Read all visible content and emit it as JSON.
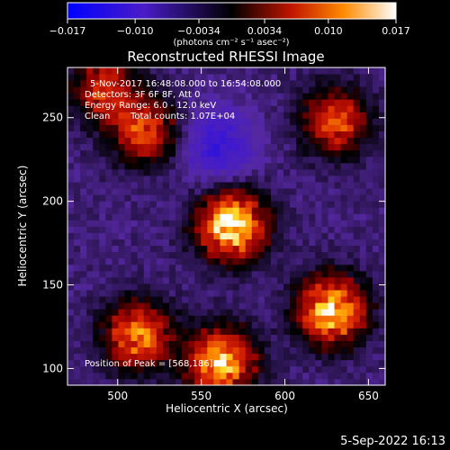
{
  "chart_data": {
    "type": "heatmap",
    "title": "Reconstructed RHESSI Image",
    "xlabel": "Heliocentric X (arcsec)",
    "ylabel": "Heliocentric Y (arcsec)",
    "x_range": [
      470,
      660
    ],
    "y_range": [
      90,
      280
    ],
    "x_ticks": [
      500,
      550,
      600,
      650
    ],
    "y_ticks": [
      100,
      150,
      200,
      250
    ],
    "annotations": {
      "time_range": "5-Nov-2017 16:48:08.000 to 16:54:08.000",
      "detectors": "Detectors: 3F 6F 8F, Att 0",
      "energy_range": "Energy Range: 6.0 - 12.0 keV",
      "method": "Clean",
      "total_counts": "Total counts: 1.07E+04",
      "peak": "Position of Peak = [568,186]"
    },
    "colorbar": {
      "range": [
        -0.017,
        0.017
      ],
      "tick_labels": [
        "−0.017",
        "−0.010",
        "−0.0034",
        "0.0034",
        "0.010",
        "0.017"
      ],
      "tick_values": [
        -0.017,
        -0.01,
        -0.0034,
        0.0034,
        0.01,
        0.017
      ],
      "unit_label": "(photons cm⁻² s⁻¹ asec⁻²)"
    },
    "sources": [
      {
        "x": 568,
        "y": 186,
        "peak": 0.017
      },
      {
        "x": 628,
        "y": 135,
        "peak": 0.015
      },
      {
        "x": 562,
        "y": 104,
        "peak": 0.014
      },
      {
        "x": 512,
        "y": 120,
        "peak": 0.011
      },
      {
        "x": 516,
        "y": 242,
        "peak": 0.0085
      },
      {
        "x": 630,
        "y": 248,
        "peak": 0.0085
      },
      {
        "x": 492,
        "y": 268,
        "peak": 0.007
      }
    ],
    "minimum": {
      "x": 560,
      "y": 233,
      "value": -0.011
    },
    "background": -0.004
  },
  "footer": {
    "timestamp": "5-Sep-2022 16:13"
  }
}
